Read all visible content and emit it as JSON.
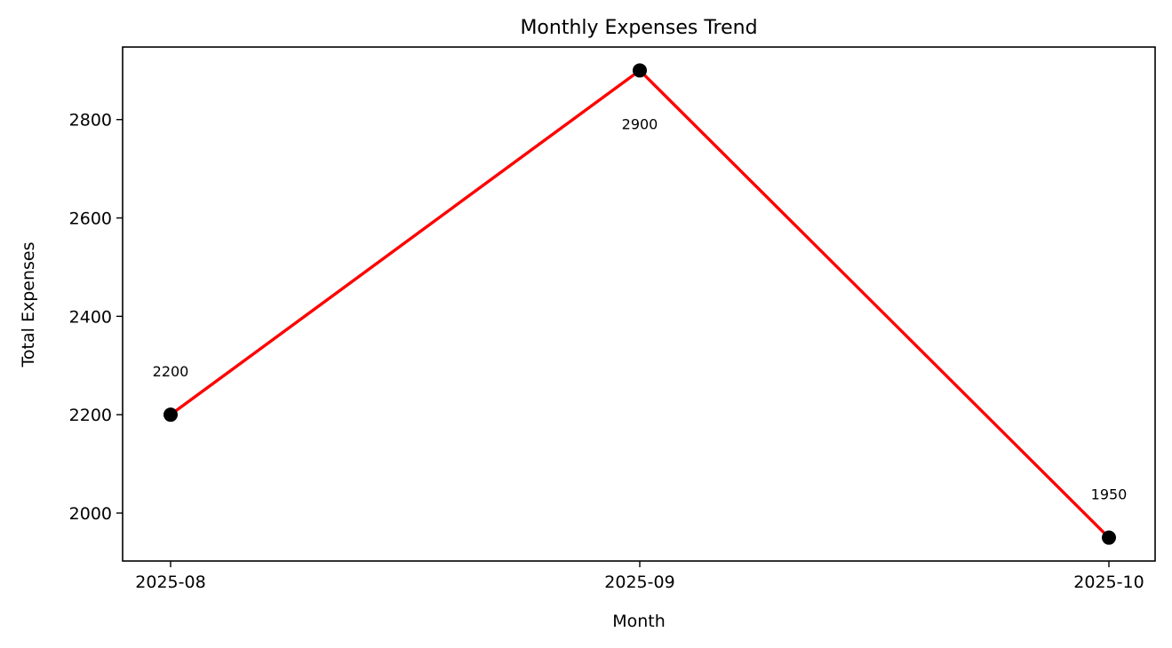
{
  "chart_data": {
    "type": "line",
    "title": "Monthly Expenses Trend",
    "xlabel": "Month",
    "ylabel": "Total Expenses",
    "categories": [
      "2025-08",
      "2025-09",
      "2025-10"
    ],
    "series": [
      {
        "values": [
          2200,
          2900,
          1950
        ],
        "color": "#ff0000",
        "marker_color": "#000000"
      }
    ],
    "data_labels": [
      "2200",
      "2900",
      "1950"
    ],
    "yticks": [
      2000,
      2200,
      2400,
      2600,
      2800
    ],
    "ytick_labels": [
      "2000",
      "2200",
      "2400",
      "2600",
      "2800"
    ],
    "ylim": [
      1902.5,
      2947.5
    ],
    "grid": false,
    "legend": "none"
  }
}
